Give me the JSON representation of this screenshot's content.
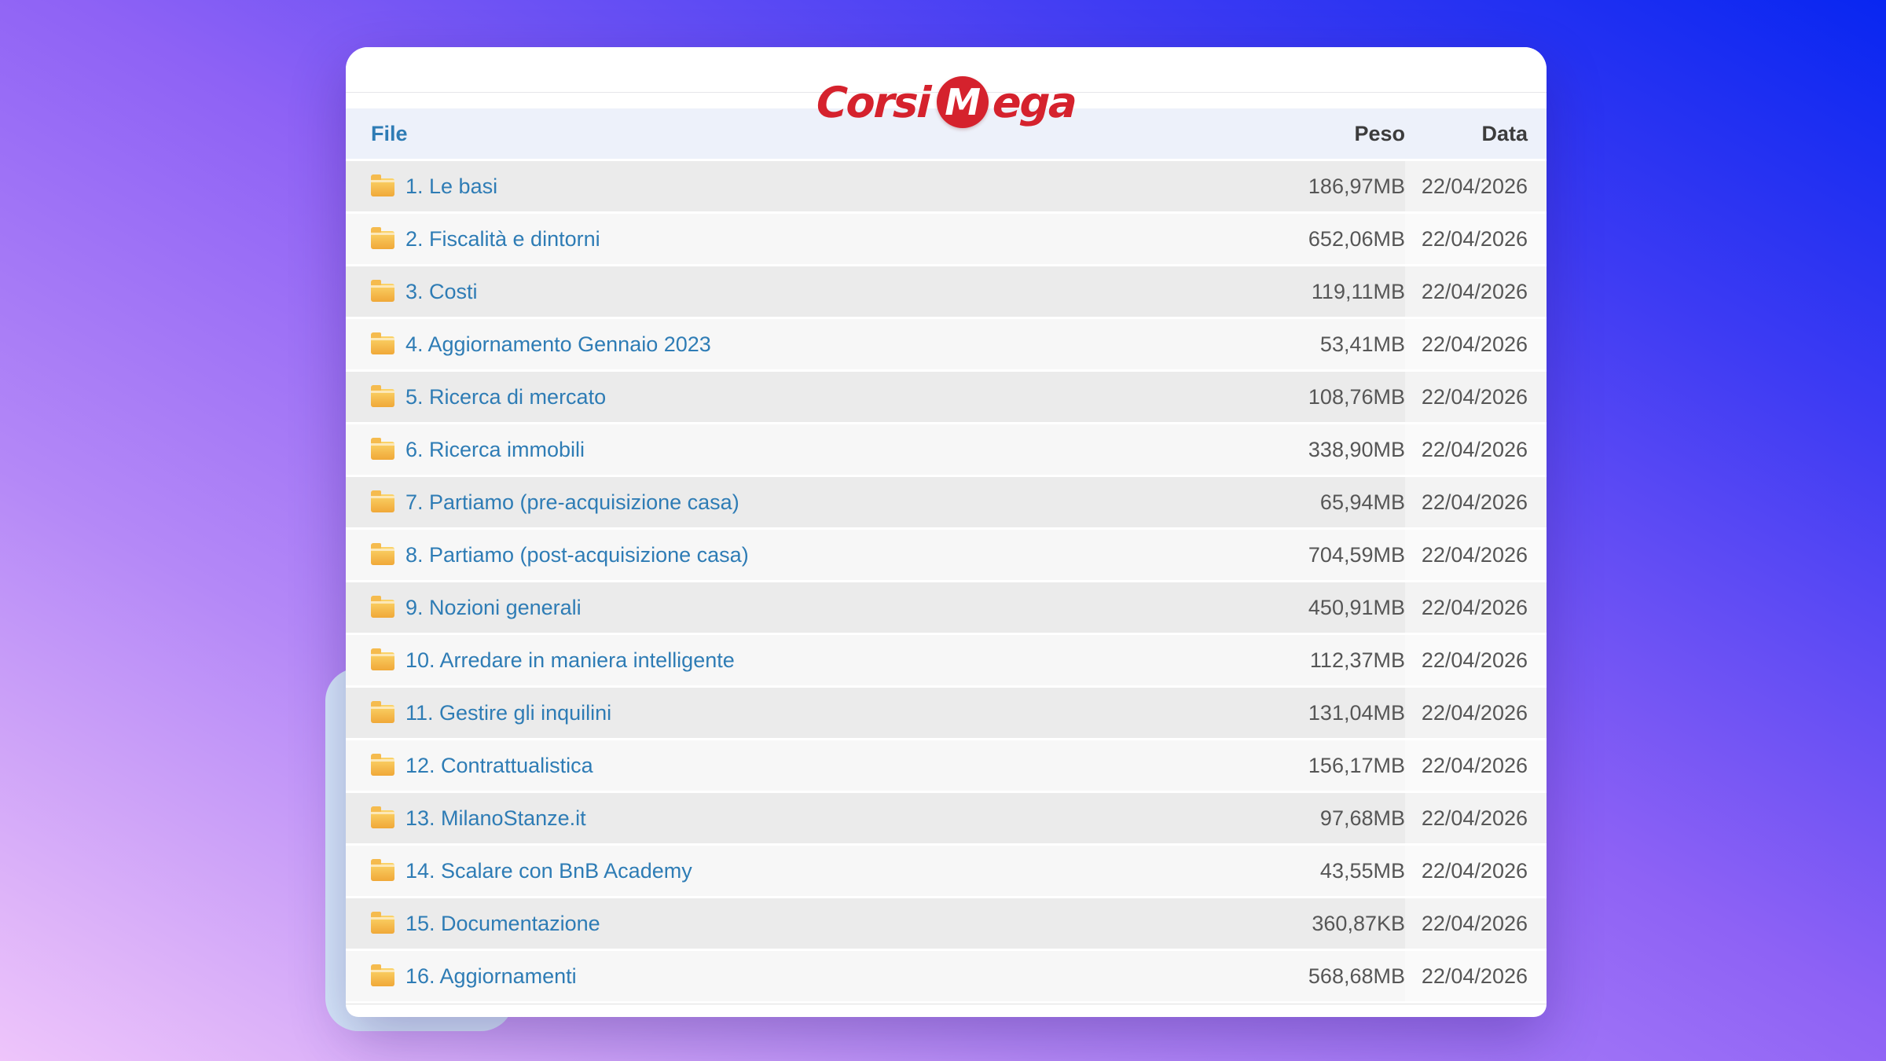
{
  "logo": {
    "word_start": "Corsi",
    "circle_letter": "M",
    "word_end": "ega"
  },
  "table": {
    "headers": {
      "file": "File",
      "peso": "Peso",
      "data": "Data"
    },
    "rows": [
      {
        "name": "1. Le basi",
        "peso": "186,97MB",
        "data": "22/04/2026"
      },
      {
        "name": "2. Fiscalità e dintorni",
        "peso": "652,06MB",
        "data": "22/04/2026"
      },
      {
        "name": "3. Costi",
        "peso": "119,11MB",
        "data": "22/04/2026"
      },
      {
        "name": "4. Aggiornamento Gennaio 2023",
        "peso": "53,41MB",
        "data": "22/04/2026"
      },
      {
        "name": "5. Ricerca di mercato",
        "peso": "108,76MB",
        "data": "22/04/2026"
      },
      {
        "name": "6. Ricerca immobili",
        "peso": "338,90MB",
        "data": "22/04/2026"
      },
      {
        "name": "7. Partiamo (pre-acquisizione casa)",
        "peso": "65,94MB",
        "data": "22/04/2026"
      },
      {
        "name": "8. Partiamo (post-acquisizione casa)",
        "peso": "704,59MB",
        "data": "22/04/2026"
      },
      {
        "name": "9. Nozioni generali",
        "peso": "450,91MB",
        "data": "22/04/2026"
      },
      {
        "name": "10. Arredare in maniera intelligente",
        "peso": "112,37MB",
        "data": "22/04/2026"
      },
      {
        "name": "11. Gestire gli inquilini",
        "peso": "131,04MB",
        "data": "22/04/2026"
      },
      {
        "name": "12. Contrattualistica",
        "peso": "156,17MB",
        "data": "22/04/2026"
      },
      {
        "name": "13. MilanoStanze.it",
        "peso": "97,68MB",
        "data": "22/04/2026"
      },
      {
        "name": "14. Scalare con BnB Academy",
        "peso": "43,55MB",
        "data": "22/04/2026"
      },
      {
        "name": "15. Documentazione",
        "peso": "360,87KB",
        "data": "22/04/2026"
      },
      {
        "name": "16. Aggiornamenti",
        "peso": "568,68MB",
        "data": "22/04/2026"
      }
    ]
  },
  "colors": {
    "brand_red": "#d5222d",
    "link_blue": "#2e7cb5",
    "header_text": "#3c3c3c",
    "value_text": "#565656",
    "header_band_bg": "#edf1fa",
    "row_odd_bg": "#ebebeb",
    "row_even_bg": "#f7f7f7",
    "accent_sheet": "#d7e9fb",
    "bg_gradient_top_right": "#0826f1",
    "bg_gradient_bottom_left": "#eec5fa"
  }
}
